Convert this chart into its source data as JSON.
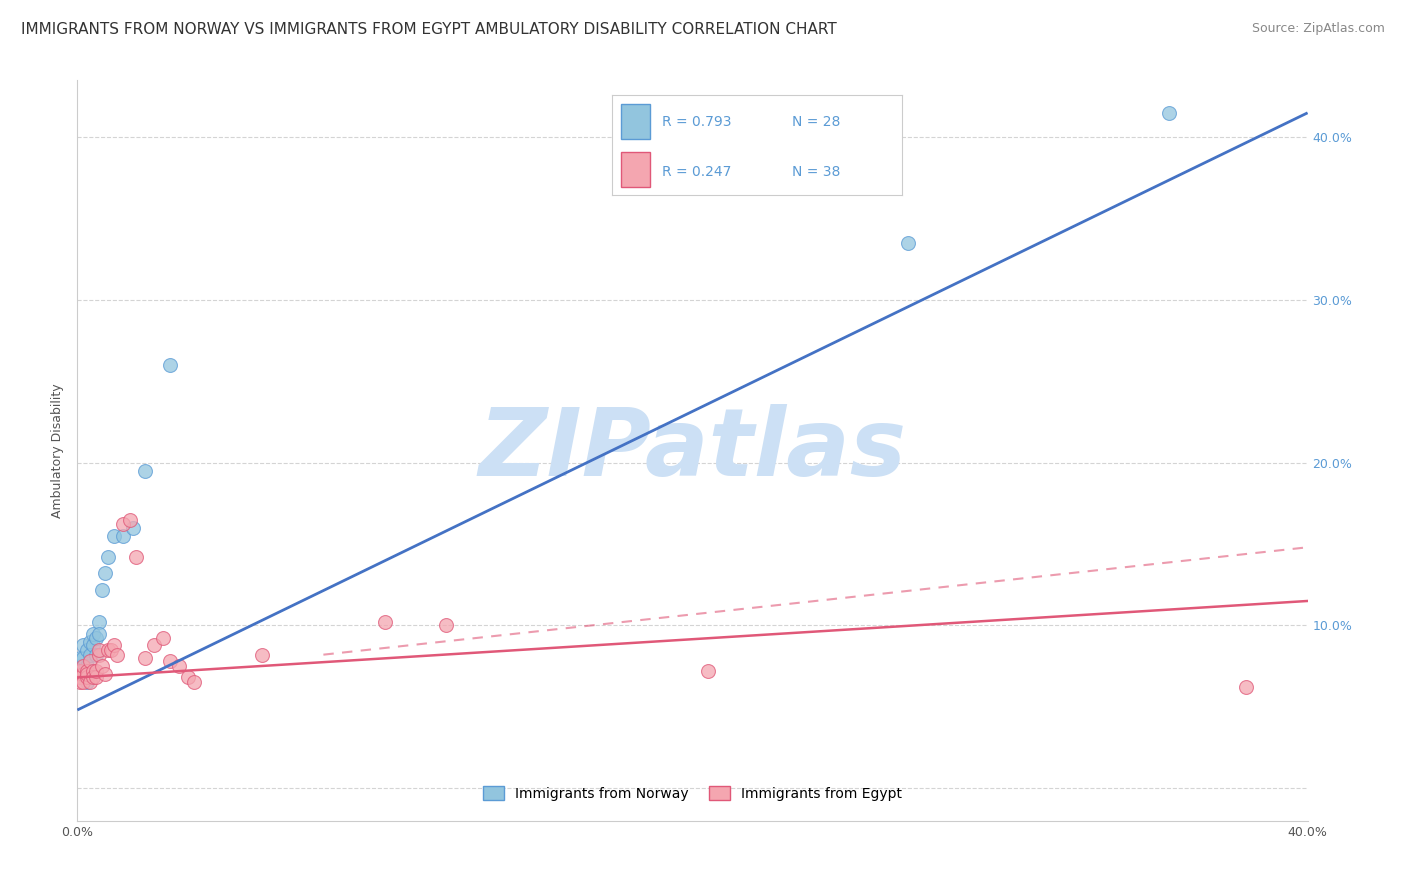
{
  "title": "IMMIGRANTS FROM NORWAY VS IMMIGRANTS FROM EGYPT AMBULATORY DISABILITY CORRELATION CHART",
  "source": "Source: ZipAtlas.com",
  "ylabel": "Ambulatory Disability",
  "xmin": 0.0,
  "xmax": 0.4,
  "ymin": -0.02,
  "ymax": 0.435,
  "norway_color": "#92c5de",
  "norway_edge": "#5b9bd5",
  "egypt_color": "#f4a6b0",
  "egypt_edge": "#e05878",
  "norway_scatter_x": [
    0.001,
    0.001,
    0.001,
    0.002,
    0.002,
    0.002,
    0.003,
    0.003,
    0.003,
    0.004,
    0.004,
    0.004,
    0.005,
    0.005,
    0.006,
    0.006,
    0.007,
    0.007,
    0.008,
    0.009,
    0.01,
    0.012,
    0.015,
    0.018,
    0.022,
    0.03,
    0.27,
    0.355
  ],
  "norway_scatter_y": [
    0.068,
    0.075,
    0.08,
    0.072,
    0.08,
    0.088,
    0.065,
    0.075,
    0.085,
    0.09,
    0.082,
    0.072,
    0.088,
    0.095,
    0.082,
    0.092,
    0.102,
    0.095,
    0.122,
    0.132,
    0.142,
    0.155,
    0.155,
    0.16,
    0.195,
    0.26,
    0.335,
    0.415
  ],
  "egypt_scatter_x": [
    0.001,
    0.001,
    0.001,
    0.002,
    0.002,
    0.002,
    0.003,
    0.003,
    0.003,
    0.004,
    0.004,
    0.005,
    0.005,
    0.006,
    0.006,
    0.007,
    0.007,
    0.008,
    0.009,
    0.01,
    0.011,
    0.012,
    0.013,
    0.015,
    0.017,
    0.019,
    0.022,
    0.025,
    0.028,
    0.03,
    0.033,
    0.036,
    0.038,
    0.06,
    0.1,
    0.12,
    0.205,
    0.38
  ],
  "egypt_scatter_y": [
    0.068,
    0.072,
    0.065,
    0.07,
    0.075,
    0.065,
    0.072,
    0.068,
    0.07,
    0.078,
    0.065,
    0.072,
    0.068,
    0.068,
    0.072,
    0.082,
    0.085,
    0.075,
    0.07,
    0.085,
    0.085,
    0.088,
    0.082,
    0.162,
    0.165,
    0.142,
    0.08,
    0.088,
    0.092,
    0.078,
    0.075,
    0.068,
    0.065,
    0.082,
    0.102,
    0.1,
    0.072,
    0.062
  ],
  "norway_line": [
    0.0,
    0.048,
    0.4,
    0.415
  ],
  "egypt_solid_line": [
    0.0,
    0.068,
    0.4,
    0.115
  ],
  "egypt_dashed_line": [
    0.08,
    0.082,
    0.4,
    0.148
  ],
  "grid_color": "#d0d0d0",
  "bg_color": "#ffffff",
  "watermark_text": "ZIPatlas",
  "watermark_color": "#cce0f5",
  "norway_line_color": "#4472c4",
  "egypt_line_color": "#e05878",
  "right_tick_color": "#5b9bd5",
  "ytick_vals": [
    0.0,
    0.1,
    0.2,
    0.3,
    0.4
  ],
  "ytick_labels_right": [
    "",
    "10.0%",
    "20.0%",
    "30.0%",
    "40.0%"
  ],
  "xtick_vals": [
    0.0,
    0.1,
    0.2,
    0.3,
    0.4
  ],
  "xtick_labels": [
    "0.0%",
    "",
    "",
    "",
    "40.0%"
  ],
  "legend_R1": "R = 0.793",
  "legend_N1": "N = 28",
  "legend_R2": "R = 0.247",
  "legend_N2": "N = 38",
  "bottom_legend_norway": "Immigrants from Norway",
  "bottom_legend_egypt": "Immigrants from Egypt",
  "title_fontsize": 11,
  "label_fontsize": 9,
  "tick_fontsize": 9,
  "legend_fontsize": 10
}
